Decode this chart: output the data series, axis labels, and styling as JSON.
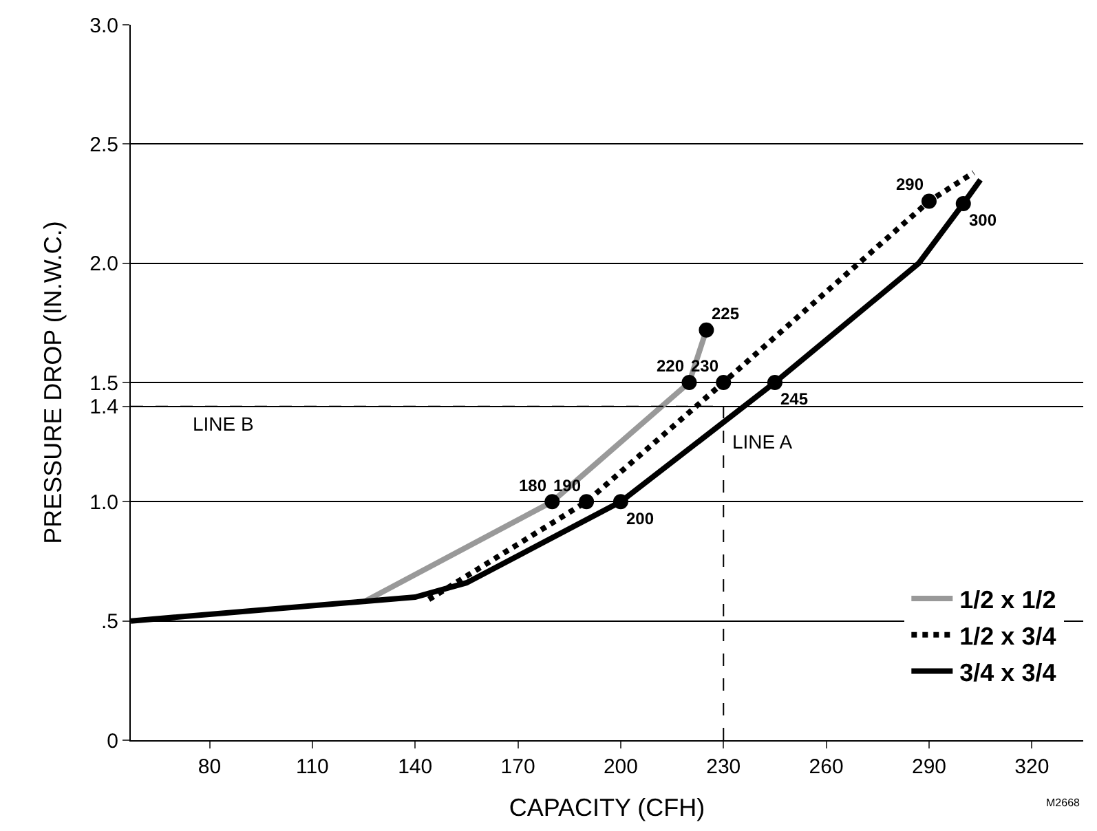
{
  "chart_data": {
    "type": "line",
    "xlabel": "CAPACITY (CFH)",
    "ylabel": "PRESSURE DROP (IN.W.C.)",
    "xlim": [
      57,
      335
    ],
    "ylim": [
      0,
      3.0
    ],
    "xticks": [
      80,
      110,
      140,
      170,
      200,
      230,
      260,
      290,
      320
    ],
    "yticks": [
      0,
      {
        "value": 0.5,
        "label": ".5"
      },
      {
        "value": 1.0,
        "label": "1.0"
      },
      1.4,
      {
        "value": 1.5,
        "label": "1.5"
      },
      {
        "value": 2.0,
        "label": "2.0"
      },
      {
        "value": 2.5,
        "label": "2.5"
      },
      {
        "value": 3.0,
        "label": "3.0"
      }
    ],
    "grid": "y",
    "legend": "bottom right",
    "series": [
      {
        "name": "1/2 x 1/2",
        "color": "#999999",
        "line_style": "solid",
        "x": [
          125,
          180,
          220,
          225
        ],
        "values": [
          0.58,
          1.0,
          1.5,
          1.72
        ]
      },
      {
        "name": "1/2 x 3/4",
        "color": "#000000",
        "line_style": "dotted",
        "x": [
          144,
          190,
          230,
          290,
          303
        ],
        "values": [
          0.59,
          1.0,
          1.5,
          2.26,
          2.38
        ]
      },
      {
        "name": "3/4 x 3/4",
        "color": "#000000",
        "line_style": "solid",
        "x": [
          57,
          140,
          155,
          200,
          245,
          287,
          300,
          305
        ],
        "values": [
          0.5,
          0.6,
          0.66,
          1.0,
          1.5,
          2.0,
          2.25,
          2.35
        ]
      },
      {
        "type": "scatter",
        "marker": "circle",
        "color": "#000000",
        "x": [
          180,
          190,
          200,
          220,
          225,
          230,
          245,
          290,
          300
        ],
        "values": [
          1.0,
          1.0,
          1.0,
          1.5,
          1.72,
          1.5,
          1.5,
          2.26,
          2.25
        ]
      }
    ],
    "ref_lines": [
      {
        "axis": "y",
        "value": 1.4,
        "label": "LINE B",
        "line_style": "dashed",
        "color": "#000000"
      },
      {
        "axis": "x",
        "value": 230,
        "label": "LINE A",
        "line_style": "dashed",
        "color": "#000000"
      }
    ],
    "annotations": [
      {
        "text": "180",
        "x": 180,
        "y": 1.0
      },
      {
        "text": "190",
        "x": 190,
        "y": 1.0
      },
      {
        "text": "200",
        "x": 200,
        "y": 1.0
      },
      {
        "text": "220",
        "x": 220,
        "y": 1.5
      },
      {
        "text": "225",
        "x": 225,
        "y": 1.72
      },
      {
        "text": "230",
        "x": 230,
        "y": 1.5
      },
      {
        "text": "245",
        "x": 245,
        "y": 1.5
      },
      {
        "text": "290",
        "x": 290,
        "y": 2.26
      },
      {
        "text": "300",
        "x": 300,
        "y": 2.25
      },
      "M2668"
    ]
  }
}
